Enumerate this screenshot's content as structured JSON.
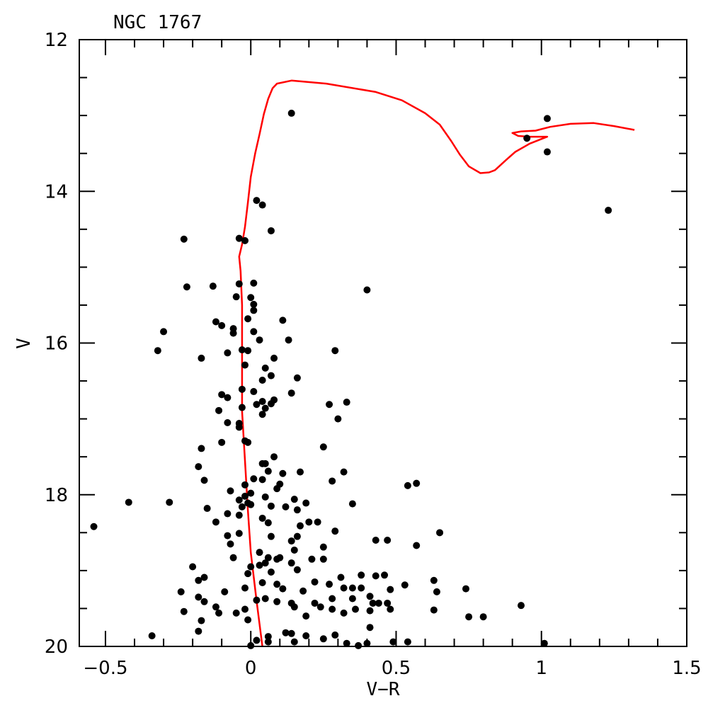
{
  "chart_data": {
    "type": "scatter",
    "title": "NGC 1767",
    "xlabel": "V−R",
    "ylabel": "V",
    "xlim": [
      -0.59,
      1.5
    ],
    "ylim": [
      20,
      12
    ],
    "y_inverted": true,
    "grid": false,
    "xticks": [
      -0.5,
      0,
      0.5,
      1,
      1.5
    ],
    "xtick_labels": [
      "−0.5",
      "0",
      "0.5",
      "1",
      "1.5"
    ],
    "yticks": [
      12,
      14,
      16,
      18,
      20
    ],
    "ytick_labels": [
      "12",
      "14",
      "16",
      "18",
      "20"
    ],
    "colors": {
      "points": "#000000",
      "isochrone": "#ff0000"
    },
    "series": [
      {
        "name": "stars",
        "kind": "scatter",
        "points": [
          [
            0.14,
            12.97
          ],
          [
            1.02,
            13.04
          ],
          [
            0.95,
            13.3
          ],
          [
            1.02,
            13.48
          ],
          [
            1.23,
            14.25
          ],
          [
            0.02,
            14.12
          ],
          [
            0.04,
            14.18
          ],
          [
            0.07,
            14.52
          ],
          [
            -0.23,
            14.63
          ],
          [
            -0.04,
            14.62
          ],
          [
            -0.02,
            14.65
          ],
          [
            0.4,
            15.3
          ],
          [
            -0.22,
            15.26
          ],
          [
            -0.13,
            15.25
          ],
          [
            -0.04,
            15.22
          ],
          [
            0.01,
            15.21
          ],
          [
            -0.05,
            15.39
          ],
          [
            0.0,
            15.4
          ],
          [
            0.01,
            15.49
          ],
          [
            0.01,
            15.57
          ],
          [
            -0.01,
            15.68
          ],
          [
            0.11,
            15.7
          ],
          [
            -0.12,
            15.72
          ],
          [
            -0.1,
            15.77
          ],
          [
            -0.06,
            15.81
          ],
          [
            -0.3,
            15.85
          ],
          [
            0.01,
            15.85
          ],
          [
            -0.06,
            15.87
          ],
          [
            0.13,
            15.96
          ],
          [
            -0.32,
            16.1
          ],
          [
            -0.08,
            16.13
          ],
          [
            -0.03,
            16.09
          ],
          [
            -0.01,
            16.1
          ],
          [
            0.29,
            16.1
          ],
          [
            0.03,
            15.96
          ],
          [
            0.08,
            16.2
          ],
          [
            -0.17,
            16.2
          ],
          [
            -0.02,
            16.29
          ],
          [
            0.05,
            16.33
          ],
          [
            0.07,
            16.43
          ],
          [
            0.16,
            16.46
          ],
          [
            0.04,
            16.49
          ],
          [
            -0.03,
            16.61
          ],
          [
            0.01,
            16.64
          ],
          [
            0.14,
            16.66
          ],
          [
            -0.1,
            16.68
          ],
          [
            -0.08,
            16.72
          ],
          [
            0.04,
            16.77
          ],
          [
            0.02,
            16.81
          ],
          [
            0.08,
            16.75
          ],
          [
            0.07,
            16.8
          ],
          [
            0.05,
            16.86
          ],
          [
            0.04,
            16.94
          ],
          [
            -0.03,
            16.85
          ],
          [
            0.27,
            16.81
          ],
          [
            0.33,
            16.78
          ],
          [
            0.3,
            17.0
          ],
          [
            -0.11,
            16.89
          ],
          [
            -0.04,
            17.06
          ],
          [
            -0.08,
            17.05
          ],
          [
            -0.04,
            17.11
          ],
          [
            -0.1,
            17.31
          ],
          [
            -0.02,
            17.29
          ],
          [
            -0.01,
            17.31
          ],
          [
            -0.17,
            17.39
          ],
          [
            0.25,
            17.37
          ],
          [
            0.08,
            17.5
          ],
          [
            0.04,
            17.59
          ],
          [
            0.05,
            17.59
          ],
          [
            -0.18,
            17.63
          ],
          [
            0.06,
            17.69
          ],
          [
            0.11,
            17.72
          ],
          [
            0.17,
            17.7
          ],
          [
            0.32,
            17.7
          ],
          [
            -0.16,
            17.81
          ],
          [
            0.01,
            17.79
          ],
          [
            0.04,
            17.8
          ],
          [
            0.28,
            17.82
          ],
          [
            0.54,
            17.88
          ],
          [
            0.57,
            17.85
          ],
          [
            -0.02,
            17.87
          ],
          [
            0.1,
            17.86
          ],
          [
            0.09,
            17.92
          ],
          [
            -0.07,
            17.95
          ],
          [
            0.0,
            17.98
          ],
          [
            -0.02,
            18.02
          ],
          [
            -0.04,
            18.07
          ],
          [
            -0.01,
            18.11
          ],
          [
            0.0,
            18.13
          ],
          [
            -0.03,
            18.16
          ],
          [
            -0.42,
            18.1
          ],
          [
            -0.28,
            18.1
          ],
          [
            -0.15,
            18.18
          ],
          [
            0.05,
            18.03
          ],
          [
            0.15,
            18.06
          ],
          [
            0.35,
            18.12
          ],
          [
            0.19,
            18.11
          ],
          [
            0.07,
            18.15
          ],
          [
            0.12,
            18.16
          ],
          [
            -0.08,
            18.25
          ],
          [
            -0.04,
            18.27
          ],
          [
            0.16,
            18.2
          ],
          [
            0.06,
            18.37
          ],
          [
            -0.12,
            18.36
          ],
          [
            0.04,
            18.31
          ],
          [
            0.17,
            18.41
          ],
          [
            0.2,
            18.36
          ],
          [
            0.23,
            18.36
          ],
          [
            -0.54,
            18.42
          ],
          [
            -0.08,
            18.54
          ],
          [
            -0.04,
            18.51
          ],
          [
            0.29,
            18.48
          ],
          [
            0.65,
            18.5
          ],
          [
            0.07,
            18.55
          ],
          [
            0.16,
            18.55
          ],
          [
            0.14,
            18.61
          ],
          [
            0.43,
            18.6
          ],
          [
            0.47,
            18.6
          ],
          [
            0.57,
            18.67
          ],
          [
            -0.07,
            18.65
          ],
          [
            0.25,
            18.69
          ],
          [
            0.15,
            18.73
          ],
          [
            0.03,
            18.76
          ],
          [
            -0.06,
            18.83
          ],
          [
            0.06,
            18.83
          ],
          [
            0.09,
            18.85
          ],
          [
            0.1,
            18.83
          ],
          [
            0.21,
            18.85
          ],
          [
            0.25,
            18.85
          ],
          [
            0.14,
            18.9
          ],
          [
            0.05,
            18.9
          ],
          [
            0.03,
            18.93
          ],
          [
            0.0,
            18.95
          ],
          [
            -0.2,
            18.95
          ],
          [
            0.16,
            18.99
          ],
          [
            0.07,
            19.02
          ],
          [
            -0.01,
            19.04
          ],
          [
            -0.16,
            19.09
          ],
          [
            -0.18,
            19.13
          ],
          [
            0.31,
            19.09
          ],
          [
            0.38,
            19.06
          ],
          [
            0.43,
            19.07
          ],
          [
            0.46,
            19.06
          ],
          [
            0.63,
            19.13
          ],
          [
            0.22,
            19.15
          ],
          [
            0.27,
            19.18
          ],
          [
            0.04,
            19.16
          ],
          [
            0.09,
            19.18
          ],
          [
            0.53,
            19.19
          ],
          [
            0.74,
            19.24
          ],
          [
            -0.02,
            19.23
          ],
          [
            0.11,
            19.24
          ],
          [
            0.32,
            19.23
          ],
          [
            0.35,
            19.23
          ],
          [
            0.38,
            19.23
          ],
          [
            0.48,
            19.25
          ],
          [
            -0.24,
            19.28
          ],
          [
            -0.09,
            19.28
          ],
          [
            0.18,
            19.27
          ],
          [
            0.64,
            19.28
          ],
          [
            0.41,
            19.34
          ],
          [
            -0.18,
            19.35
          ],
          [
            0.05,
            19.37
          ],
          [
            0.02,
            19.39
          ],
          [
            0.28,
            19.37
          ],
          [
            0.35,
            19.37
          ],
          [
            -0.16,
            19.41
          ],
          [
            0.09,
            19.41
          ],
          [
            0.14,
            19.43
          ],
          [
            0.22,
            19.43
          ],
          [
            0.42,
            19.43
          ],
          [
            0.44,
            19.43
          ],
          [
            0.47,
            19.43
          ],
          [
            0.93,
            19.46
          ],
          [
            -0.12,
            19.48
          ],
          [
            -0.02,
            19.51
          ],
          [
            0.15,
            19.48
          ],
          [
            0.24,
            19.48
          ],
          [
            0.28,
            19.51
          ],
          [
            0.36,
            19.51
          ],
          [
            0.48,
            19.51
          ],
          [
            0.63,
            19.52
          ],
          [
            -0.23,
            19.54
          ],
          [
            -0.05,
            19.56
          ],
          [
            -0.11,
            19.56
          ],
          [
            0.32,
            19.56
          ],
          [
            0.41,
            19.53
          ],
          [
            -0.01,
            19.65
          ],
          [
            0.19,
            19.6
          ],
          [
            0.75,
            19.61
          ],
          [
            0.8,
            19.61
          ],
          [
            -0.17,
            19.66
          ],
          [
            0.41,
            19.75
          ],
          [
            -0.18,
            19.8
          ],
          [
            0.12,
            19.82
          ],
          [
            0.14,
            19.83
          ],
          [
            0.19,
            19.86
          ],
          [
            0.29,
            19.85
          ],
          [
            0.06,
            19.87
          ],
          [
            -0.34,
            19.86
          ],
          [
            0.25,
            19.9
          ],
          [
            0.02,
            19.92
          ],
          [
            0.06,
            19.94
          ],
          [
            0.15,
            19.94
          ],
          [
            0.33,
            19.96
          ],
          [
            0.4,
            19.96
          ],
          [
            0.49,
            19.94
          ],
          [
            0.54,
            19.94
          ],
          [
            1.01,
            19.96
          ],
          [
            0.0,
            19.99
          ],
          [
            0.37,
            19.99
          ]
        ]
      },
      {
        "name": "isochrone",
        "kind": "line",
        "points": [
          [
            0.04,
            20.0
          ],
          [
            0.02,
            19.4
          ],
          [
            0.0,
            18.76
          ],
          [
            -0.01,
            18.2
          ],
          [
            -0.02,
            17.55
          ],
          [
            -0.03,
            16.9
          ],
          [
            -0.03,
            16.15
          ],
          [
            -0.03,
            15.5
          ],
          [
            -0.035,
            15.05
          ],
          [
            -0.04,
            14.86
          ],
          [
            -0.03,
            14.7
          ],
          [
            -0.02,
            14.47
          ],
          [
            -0.01,
            14.15
          ],
          [
            0.0,
            13.81
          ],
          [
            0.015,
            13.5
          ],
          [
            0.03,
            13.25
          ],
          [
            0.045,
            12.98
          ],
          [
            0.06,
            12.78
          ],
          [
            0.075,
            12.64
          ],
          [
            0.09,
            12.58
          ],
          [
            0.14,
            12.54
          ],
          [
            0.26,
            12.58
          ],
          [
            0.43,
            12.69
          ],
          [
            0.52,
            12.8
          ],
          [
            0.6,
            12.97
          ],
          [
            0.65,
            13.12
          ],
          [
            0.69,
            13.34
          ],
          [
            0.72,
            13.52
          ],
          [
            0.75,
            13.67
          ],
          [
            0.79,
            13.76
          ],
          [
            0.82,
            13.75
          ],
          [
            0.84,
            13.72
          ],
          [
            0.88,
            13.58
          ],
          [
            0.91,
            13.48
          ],
          [
            0.96,
            13.37
          ],
          [
            1.02,
            13.28
          ],
          [
            0.96,
            13.28
          ],
          [
            0.92,
            13.27
          ],
          [
            0.9,
            13.23
          ],
          [
            0.93,
            13.21
          ],
          [
            0.98,
            13.2
          ],
          [
            1.03,
            13.15
          ],
          [
            1.1,
            13.11
          ],
          [
            1.18,
            13.1
          ],
          [
            1.25,
            13.14
          ],
          [
            1.32,
            13.19
          ]
        ]
      }
    ]
  }
}
